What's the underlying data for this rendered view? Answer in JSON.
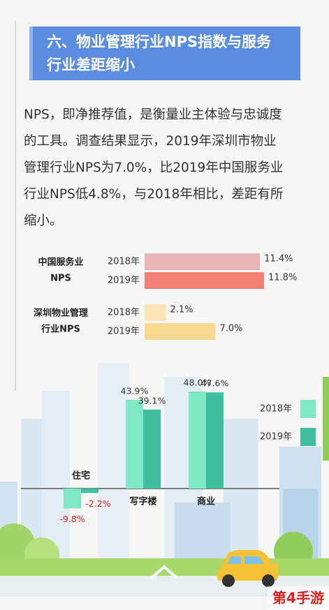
{
  "header": {
    "title": [
      "六、物业管理行业NPS指数与服务",
      "行业差距缩小"
    ]
  },
  "paragraph": [
    "NPS，即净推荐值，是衡量业主体验与忠诚度",
    "的工具。调查结果显示，2019年深圳市物业",
    "管理行业NPS为7.0%，比2019年中国服务业",
    "行业NPS低4.8%，与2018年相比，差距有所",
    "缩小。"
  ],
  "watermark": "第4手游",
  "chart_data": [
    {
      "type": "hbar",
      "categories": [
        [
          "中国服务业",
          "NPS"
        ],
        [
          "深圳物业管理",
          "行业NPS"
        ]
      ],
      "series": [
        {
          "name": "2018年",
          "colors": [
            "#eab5b4",
            "#fbe4b8"
          ],
          "values": [
            11.4,
            2.1
          ],
          "value_labels": [
            "11.4%",
            "2.1%"
          ]
        },
        {
          "name": "2019年",
          "colors": [
            "#f27e74",
            "#f9d98f"
          ],
          "values": [
            11.8,
            7.0
          ],
          "value_labels": [
            "11.8%",
            "7.0%"
          ]
        }
      ]
    },
    {
      "type": "bar",
      "categories": [
        "住宅",
        "写字楼",
        "商业"
      ],
      "series": [
        {
          "name": "2018年",
          "color": "#7fe9c6",
          "values": [
            -9.8,
            43.9,
            48.0
          ],
          "value_labels": [
            "-9.8%",
            "43.9%",
            "48.0%"
          ]
        },
        {
          "name": "2019年",
          "color": "#3fbfa0",
          "values": [
            -2.2,
            39.1,
            47.6
          ],
          "value_labels": [
            "-2.2%",
            "39.1%",
            "47.6%"
          ]
        }
      ],
      "legend": "right"
    }
  ]
}
